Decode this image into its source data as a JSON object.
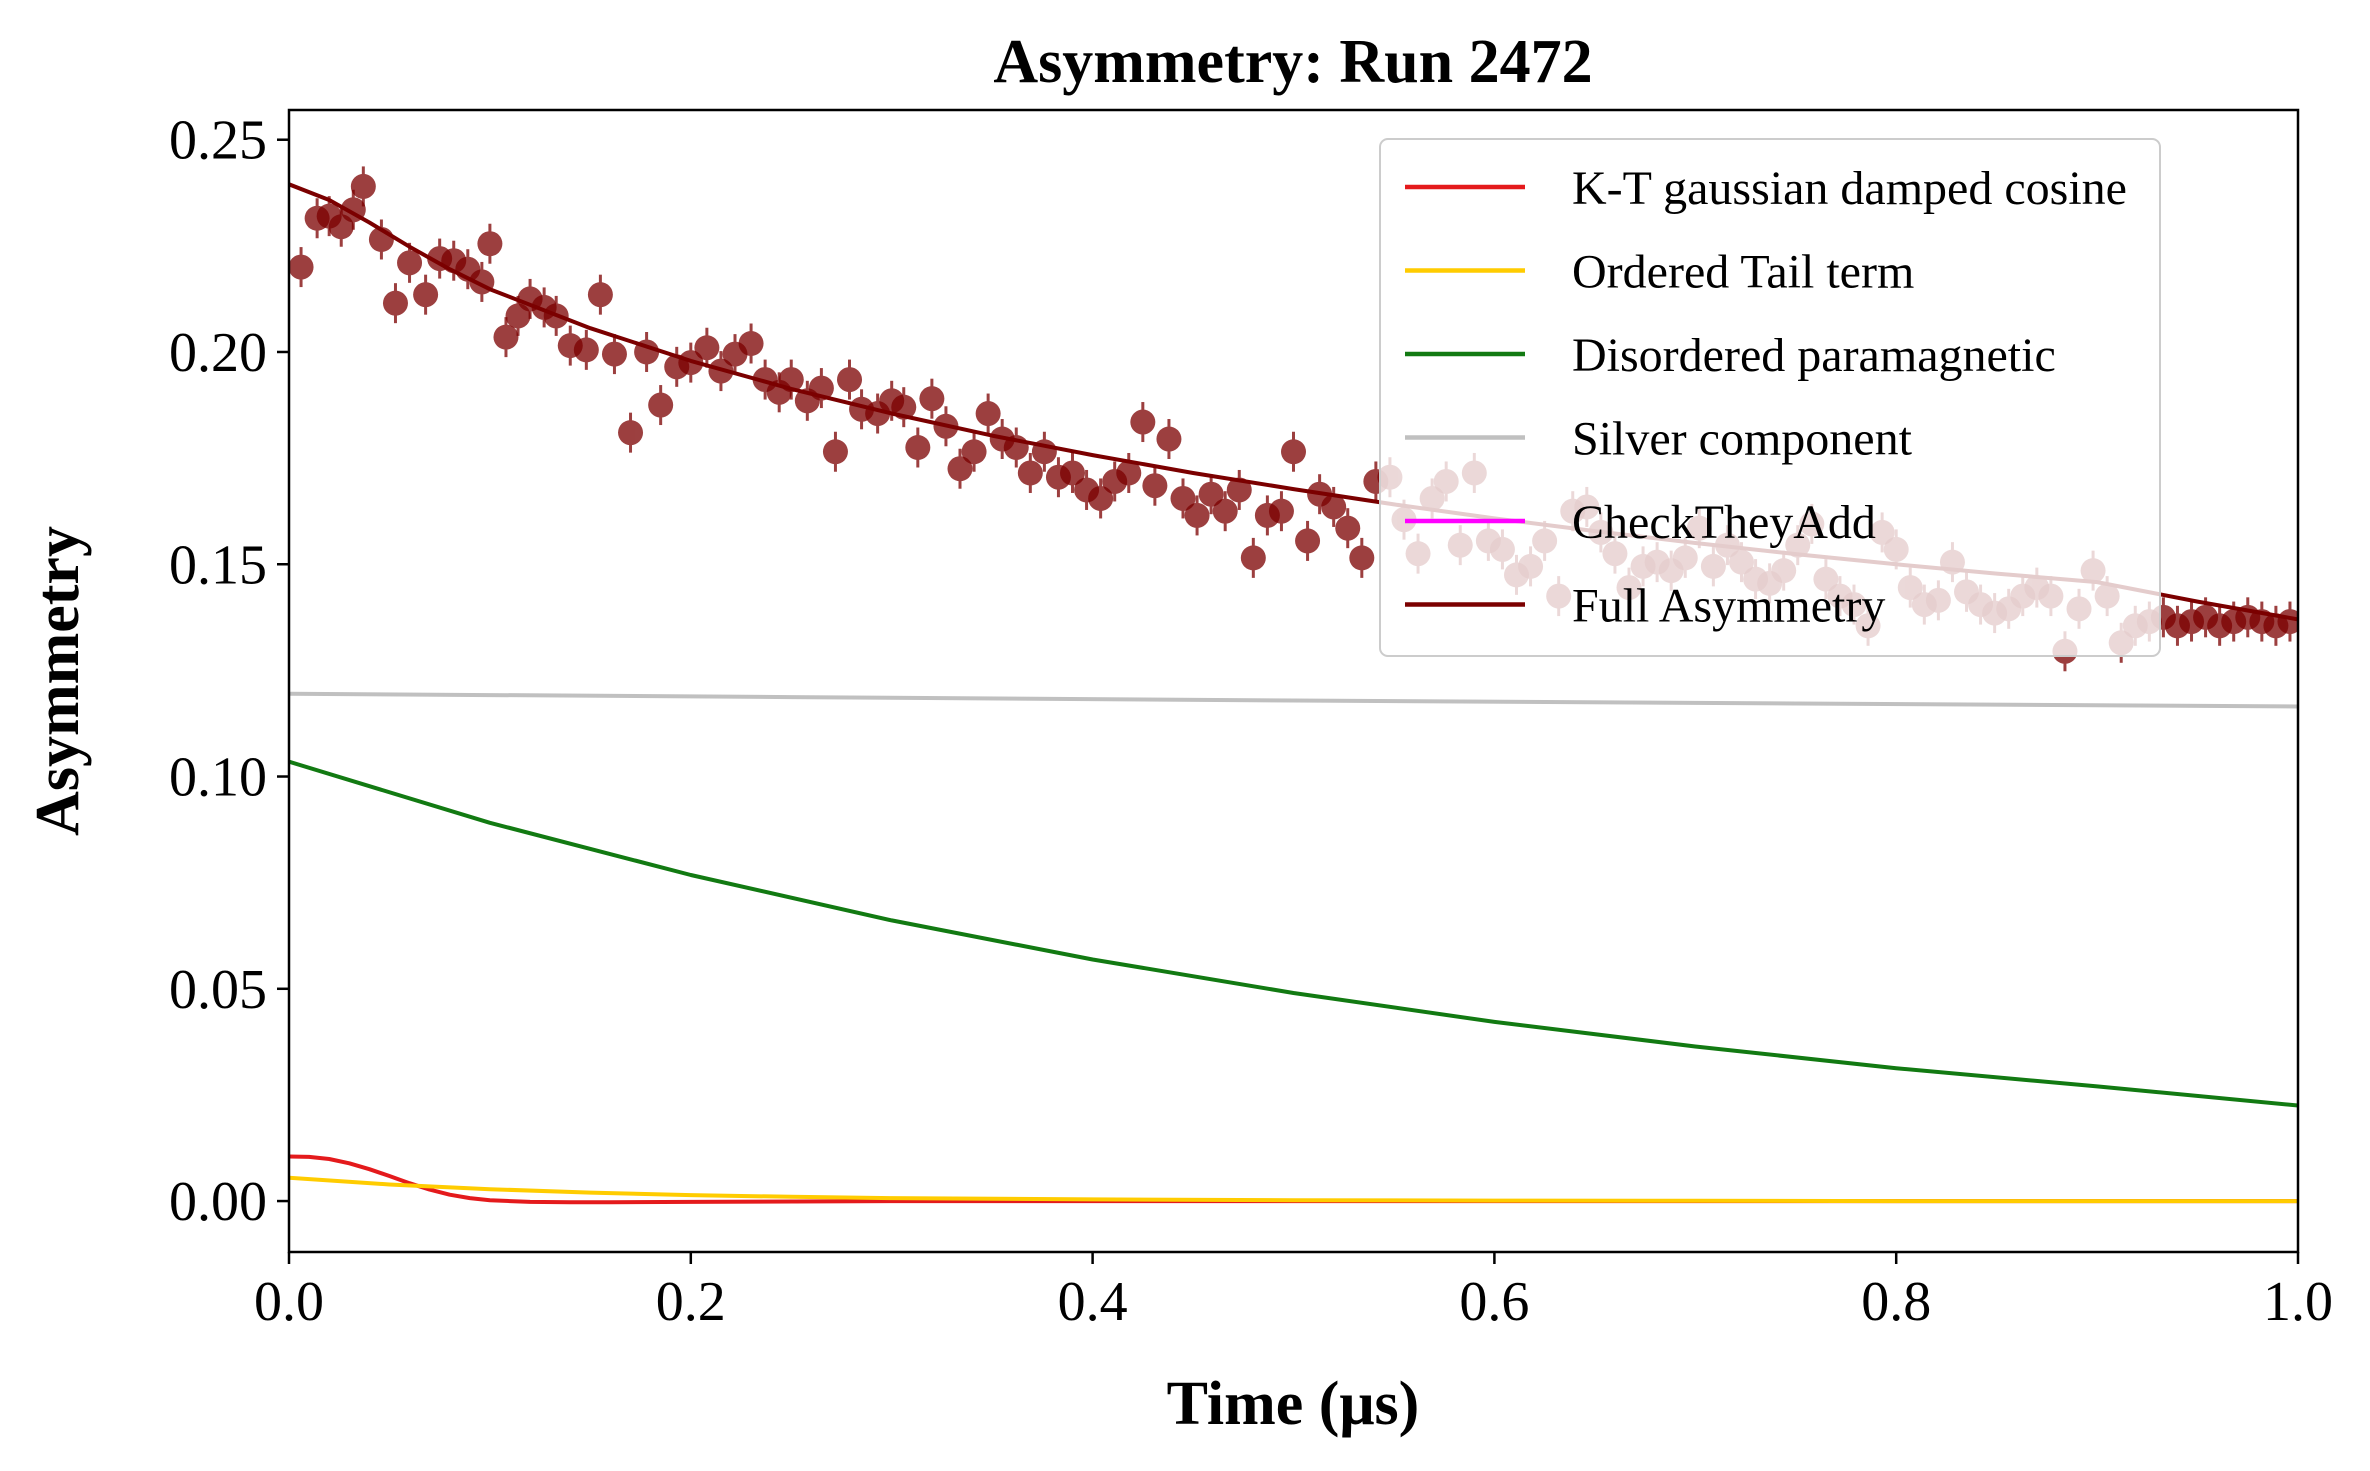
{
  "chart_data": {
    "type": "scatter",
    "title": "Asymmetry: Run 2472",
    "xlabel": "Time (μs)",
    "ylabel": "Asymmetry",
    "xlim": [
      0.0,
      1.0
    ],
    "ylim": [
      -0.012,
      0.257
    ],
    "xticks": [
      0.0,
      0.2,
      0.4,
      0.6,
      0.8,
      1.0
    ],
    "xtick_labels": [
      "0.0",
      "0.2",
      "0.4",
      "0.6",
      "0.8",
      "1.0"
    ],
    "yticks": [
      0.0,
      0.05,
      0.1,
      0.15,
      0.2,
      0.25
    ],
    "ytick_labels": [
      "0.00",
      "0.05",
      "0.10",
      "0.15",
      "0.20",
      "0.25"
    ],
    "grid": false,
    "legend_position": "top-right",
    "series": [
      {
        "name": "K-T gaussian damped cosine",
        "color": "#e41a1c",
        "x": [
          0.0,
          0.01,
          0.02,
          0.03,
          0.04,
          0.05,
          0.06,
          0.07,
          0.08,
          0.09,
          0.1,
          0.11,
          0.12,
          0.14,
          0.16,
          0.2,
          0.3,
          0.5,
          0.7,
          1.0
        ],
        "y": [
          0.0105,
          0.0104,
          0.0099,
          0.0089,
          0.0075,
          0.0059,
          0.0042,
          0.0027,
          0.0015,
          0.0007,
          0.0002,
          0.0,
          -0.0002,
          -0.0003,
          -0.0003,
          -0.0002,
          0.0,
          0.0,
          0.0,
          0.0
        ]
      },
      {
        "name": "Ordered Tail term",
        "color": "#ffcc00",
        "x": [
          0.0,
          0.05,
          0.1,
          0.15,
          0.2,
          0.25,
          0.3,
          0.4,
          0.5,
          0.6,
          0.7,
          0.8,
          1.0
        ],
        "y": [
          0.0055,
          0.0039,
          0.0028,
          0.002,
          0.0014,
          0.001,
          0.0007,
          0.0004,
          0.0002,
          0.0001,
          5e-05,
          0.0,
          0.0
        ]
      },
      {
        "name": "Disordered paramagnetic",
        "color": "#127a12",
        "x": [
          0.0,
          0.1,
          0.2,
          0.3,
          0.4,
          0.5,
          0.6,
          0.7,
          0.8,
          0.9,
          1.0
        ],
        "y": [
          0.1035,
          0.0891,
          0.0768,
          0.0661,
          0.0569,
          0.049,
          0.0422,
          0.0364,
          0.0313,
          0.027,
          0.0225
        ]
      },
      {
        "name": "Silver component",
        "color": "#c0c0c0",
        "x": [
          0.0,
          0.25,
          0.5,
          0.75,
          1.0
        ],
        "y": [
          0.1195,
          0.1187,
          0.1179,
          0.1172,
          0.1165
        ]
      },
      {
        "name": "CheckTheyAdd",
        "color": "#ff00ff",
        "x": [],
        "y": []
      },
      {
        "name": "Full Asymmetry",
        "color": "#7b0000",
        "x": [
          0.0,
          0.02,
          0.04,
          0.06,
          0.08,
          0.1,
          0.15,
          0.2,
          0.25,
          0.3,
          0.35,
          0.4,
          0.45,
          0.5,
          0.55,
          0.6,
          0.65,
          0.7,
          0.75,
          0.8,
          0.85,
          0.9,
          0.95,
          1.0
        ],
        "y": [
          0.2395,
          0.2358,
          0.2305,
          0.2248,
          0.2195,
          0.2148,
          0.2056,
          0.1979,
          0.1913,
          0.1855,
          0.1803,
          0.1757,
          0.1715,
          0.1677,
          0.1641,
          0.1608,
          0.1578,
          0.155,
          0.1524,
          0.15,
          0.1478,
          0.1458,
          0.1412,
          0.137
        ]
      }
    ],
    "data_points": {
      "name": "Full Asymmetry data",
      "color": "#7b0000",
      "x": [
        0.006,
        0.014,
        0.02,
        0.026,
        0.032,
        0.037,
        0.046,
        0.053,
        0.06,
        0.068,
        0.075,
        0.082,
        0.089,
        0.096,
        0.1,
        0.108,
        0.114,
        0.12,
        0.127,
        0.133,
        0.14,
        0.148,
        0.155,
        0.162,
        0.17,
        0.178,
        0.185,
        0.193,
        0.2,
        0.208,
        0.215,
        0.222,
        0.23,
        0.237,
        0.244,
        0.25,
        0.258,
        0.265,
        0.272,
        0.279,
        0.285,
        0.293,
        0.3,
        0.306,
        0.313,
        0.32,
        0.327,
        0.334,
        0.341,
        0.348,
        0.355,
        0.362,
        0.369,
        0.376,
        0.383,
        0.39,
        0.397,
        0.404,
        0.411,
        0.418,
        0.425,
        0.431,
        0.438,
        0.445,
        0.452,
        0.459,
        0.466,
        0.473,
        0.48,
        0.487,
        0.494,
        0.5,
        0.507,
        0.513,
        0.52,
        0.527,
        0.534,
        0.541,
        0.548,
        0.555,
        0.562,
        0.569,
        0.576,
        0.583,
        0.59,
        0.597,
        0.604,
        0.611,
        0.618,
        0.625,
        0.632,
        0.639,
        0.646,
        0.653,
        0.66,
        0.667,
        0.674,
        0.681,
        0.688,
        0.695,
        0.702,
        0.709,
        0.716,
        0.723,
        0.73,
        0.737,
        0.744,
        0.751,
        0.758,
        0.765,
        0.772,
        0.779,
        0.786,
        0.793,
        0.8,
        0.807,
        0.814,
        0.821,
        0.828,
        0.835,
        0.842,
        0.849,
        0.856,
        0.863,
        0.87,
        0.877,
        0.884,
        0.891,
        0.898,
        0.905,
        0.912,
        0.919,
        0.926,
        0.933,
        0.94,
        0.947,
        0.954,
        0.961,
        0.968,
        0.975,
        0.982,
        0.989,
        0.996
      ],
      "y": [
        0.22,
        0.2315,
        0.232,
        0.2295,
        0.2335,
        0.239,
        0.2265,
        0.2115,
        0.221,
        0.2135,
        0.222,
        0.2215,
        0.2195,
        0.2165,
        0.2255,
        0.2035,
        0.2085,
        0.2125,
        0.2105,
        0.2085,
        0.2015,
        0.2005,
        0.2135,
        0.1995,
        0.181,
        0.2,
        0.1875,
        0.1965,
        0.1975,
        0.201,
        0.1955,
        0.1995,
        0.202,
        0.1935,
        0.1905,
        0.1935,
        0.1885,
        0.1915,
        0.1765,
        0.1935,
        0.1865,
        0.1855,
        0.1885,
        0.187,
        0.1775,
        0.189,
        0.1825,
        0.1725,
        0.1765,
        0.1855,
        0.1795,
        0.1775,
        0.1715,
        0.1765,
        0.1705,
        0.1715,
        0.1675,
        0.1655,
        0.1695,
        0.1715,
        0.1835,
        0.1685,
        0.1795,
        0.1655,
        0.1615,
        0.1665,
        0.1625,
        0.1675,
        0.1515,
        0.1615,
        0.1625,
        0.1765,
        0.1555,
        0.1665,
        0.1635,
        0.1585,
        0.1515,
        0.1695,
        0.1705,
        0.1605,
        0.1525,
        0.1655,
        0.1695,
        0.1545,
        0.1715,
        0.1555,
        0.1535,
        0.1475,
        0.1495,
        0.1555,
        0.1425,
        0.1625,
        0.1635,
        0.1575,
        0.1525,
        0.1445,
        0.1495,
        0.1505,
        0.1485,
        0.1515,
        0.1585,
        0.1495,
        0.1545,
        0.1505,
        0.1465,
        0.1455,
        0.1485,
        0.1545,
        0.1595,
        0.1465,
        0.1425,
        0.1405,
        0.1355,
        0.1575,
        0.1535,
        0.1445,
        0.1405,
        0.1415,
        0.1505,
        0.1435,
        0.1405,
        0.1385,
        0.1395,
        0.1425,
        0.1445,
        0.1425,
        0.1295,
        0.1395,
        0.1485,
        0.1425,
        0.1315,
        0.1355,
        0.1365,
        0.1375,
        0.1355,
        0.1365,
        0.1375,
        0.1355,
        0.1365,
        0.1375,
        0.1365,
        0.1355,
        0.1365
      ]
    }
  }
}
